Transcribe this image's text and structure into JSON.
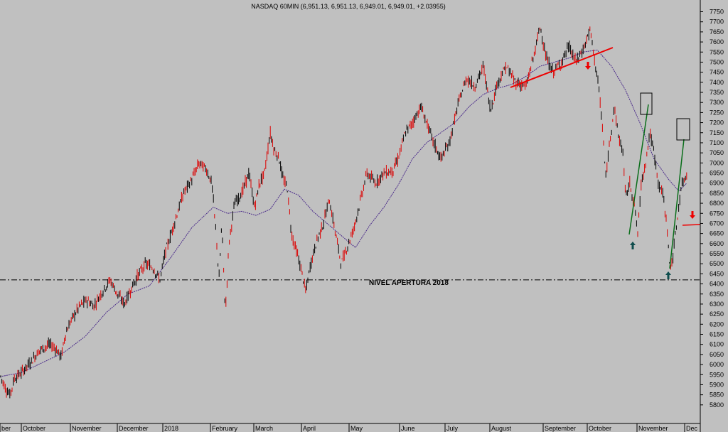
{
  "chart_data": {
    "type": "candlestick",
    "title": "NASDAQ 60MIN (6,951.13, 6,951.13, 6,949.01, 6,949.01, +2.03955)",
    "ylim": [
      5750,
      7780
    ],
    "yticks": [
      5800,
      5850,
      5900,
      5950,
      6000,
      6050,
      6100,
      6150,
      6200,
      6250,
      6300,
      6350,
      6400,
      6450,
      6500,
      6550,
      6600,
      6650,
      6700,
      6750,
      6800,
      6850,
      6900,
      6950,
      7000,
      7050,
      7100,
      7150,
      7200,
      7250,
      7300,
      7350,
      7400,
      7450,
      7500,
      7550,
      7600,
      7650,
      7700,
      7750
    ],
    "months": [
      "ber",
      "October",
      "November",
      "December",
      "2018",
      "February",
      "March",
      "April",
      "May",
      "June",
      "July",
      "August",
      "September",
      "October",
      "November",
      "Dec"
    ],
    "price_path": [
      [
        0,
        5950
      ],
      [
        8,
        5880
      ],
      [
        14,
        5850
      ],
      [
        20,
        5930
      ],
      [
        30,
        5960
      ],
      [
        45,
        6020
      ],
      [
        55,
        6070
      ],
      [
        70,
        6100
      ],
      [
        78,
        6080
      ],
      [
        86,
        6040
      ],
      [
        92,
        6150
      ],
      [
        100,
        6220
      ],
      [
        112,
        6290
      ],
      [
        122,
        6320
      ],
      [
        132,
        6290
      ],
      [
        140,
        6340
      ],
      [
        155,
        6420
      ],
      [
        165,
        6350
      ],
      [
        175,
        6300
      ],
      [
        185,
        6380
      ],
      [
        195,
        6450
      ],
      [
        205,
        6500
      ],
      [
        215,
        6480
      ],
      [
        225,
        6420
      ],
      [
        232,
        6550
      ],
      [
        245,
        6700
      ],
      [
        258,
        6850
      ],
      [
        270,
        6920
      ],
      [
        280,
        7000
      ],
      [
        290,
        6970
      ],
      [
        298,
        6900
      ],
      [
        305,
        6600
      ],
      [
        308,
        6420
      ],
      [
        312,
        6700
      ],
      [
        317,
        6250
      ],
      [
        322,
        6600
      ],
      [
        330,
        6800
      ],
      [
        340,
        6850
      ],
      [
        350,
        6950
      ],
      [
        358,
        6780
      ],
      [
        365,
        6900
      ],
      [
        372,
        6950
      ],
      [
        380,
        7150
      ],
      [
        386,
        7060
      ],
      [
        392,
        7030
      ],
      [
        398,
        6920
      ],
      [
        404,
        6880
      ],
      [
        410,
        6650
      ],
      [
        418,
        6550
      ],
      [
        425,
        6450
      ],
      [
        430,
        6360
      ],
      [
        437,
        6500
      ],
      [
        446,
        6620
      ],
      [
        455,
        6700
      ],
      [
        463,
        6820
      ],
      [
        472,
        6650
      ],
      [
        480,
        6500
      ],
      [
        490,
        6600
      ],
      [
        498,
        6680
      ],
      [
        506,
        6800
      ],
      [
        516,
        6950
      ],
      [
        528,
        6900
      ],
      [
        540,
        6950
      ],
      [
        552,
        6960
      ],
      [
        560,
        7020
      ],
      [
        570,
        7150
      ],
      [
        580,
        7200
      ],
      [
        592,
        7280
      ],
      [
        600,
        7200
      ],
      [
        610,
        7100
      ],
      [
        620,
        7020
      ],
      [
        632,
        7100
      ],
      [
        645,
        7300
      ],
      [
        656,
        7420
      ],
      [
        668,
        7380
      ],
      [
        680,
        7480
      ],
      [
        690,
        7260
      ],
      [
        700,
        7400
      ],
      [
        712,
        7480
      ],
      [
        725,
        7400
      ],
      [
        740,
        7380
      ],
      [
        752,
        7550
      ],
      [
        760,
        7680
      ],
      [
        768,
        7520
      ],
      [
        778,
        7450
      ],
      [
        790,
        7500
      ],
      [
        800,
        7580
      ],
      [
        810,
        7500
      ],
      [
        820,
        7560
      ],
      [
        830,
        7660
      ],
      [
        836,
        7520
      ],
      [
        842,
        7380
      ],
      [
        848,
        7150
      ],
      [
        852,
        6920
      ],
      [
        858,
        7120
      ],
      [
        864,
        7280
      ],
      [
        870,
        7130
      ],
      [
        876,
        7060
      ],
      [
        880,
        6830
      ],
      [
        886,
        6900
      ],
      [
        892,
        6800
      ],
      [
        897,
        6650
      ],
      [
        902,
        6900
      ],
      [
        908,
        7000
      ],
      [
        914,
        7150
      ],
      [
        920,
        7050
      ],
      [
        926,
        6900
      ],
      [
        932,
        6850
      ],
      [
        938,
        6700
      ],
      [
        942,
        6480
      ],
      [
        946,
        6520
      ],
      [
        952,
        6700
      ],
      [
        958,
        6880
      ],
      [
        963,
        6920
      ],
      [
        966,
        6949
      ]
    ],
    "moving_average": [
      [
        0,
        5940
      ],
      [
        30,
        5960
      ],
      [
        60,
        6010
      ],
      [
        90,
        6060
      ],
      [
        120,
        6140
      ],
      [
        150,
        6260
      ],
      [
        180,
        6350
      ],
      [
        210,
        6390
      ],
      [
        240,
        6530
      ],
      [
        270,
        6680
      ],
      [
        300,
        6780
      ],
      [
        320,
        6750
      ],
      [
        340,
        6760
      ],
      [
        360,
        6740
      ],
      [
        380,
        6770
      ],
      [
        400,
        6870
      ],
      [
        420,
        6840
      ],
      [
        440,
        6760
      ],
      [
        460,
        6700
      ],
      [
        480,
        6640
      ],
      [
        500,
        6580
      ],
      [
        520,
        6690
      ],
      [
        540,
        6780
      ],
      [
        560,
        6890
      ],
      [
        580,
        7020
      ],
      [
        600,
        7100
      ],
      [
        620,
        7150
      ],
      [
        640,
        7200
      ],
      [
        660,
        7280
      ],
      [
        680,
        7340
      ],
      [
        700,
        7370
      ],
      [
        720,
        7390
      ],
      [
        740,
        7430
      ],
      [
        760,
        7480
      ],
      [
        780,
        7500
      ],
      [
        800,
        7520
      ],
      [
        820,
        7550
      ],
      [
        840,
        7560
      ],
      [
        860,
        7480
      ],
      [
        880,
        7360
      ],
      [
        900,
        7200
      ],
      [
        920,
        7020
      ],
      [
        940,
        6920
      ],
      [
        955,
        6860
      ],
      [
        966,
        6900
      ]
    ],
    "annotations": {
      "level_text": "NIVEL APERTURA 2018",
      "level_value": 6420
    }
  },
  "colors": {
    "background": "#c0c0c0",
    "up": "#000000",
    "down": "#dd0000",
    "ma": "#4a2a8a",
    "trendline": "#ee0000",
    "green_line": "#0a6e1a",
    "arrow_teal": "#0f4d4d"
  }
}
